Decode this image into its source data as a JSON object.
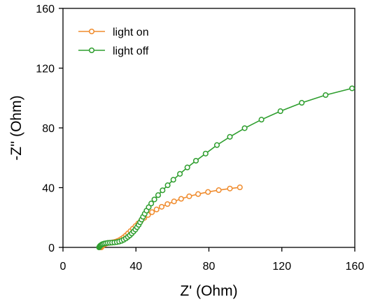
{
  "chart_data": {
    "type": "scatter",
    "xlabel": "Z' (Ohm)",
    "ylabel": "-Z'' (Ohm)",
    "xlim": [
      0,
      160
    ],
    "ylim": [
      0,
      160
    ],
    "xticks": [
      0,
      40,
      80,
      120,
      160
    ],
    "yticks": [
      0,
      40,
      80,
      120,
      160
    ],
    "grid": false,
    "legend_position": "top-left",
    "series": [
      {
        "name": "light on",
        "color": "#f08c2e",
        "marker": "open-circle",
        "points": [
          [
            21.0,
            0.0
          ],
          [
            21.3,
            0.5
          ],
          [
            21.6,
            1.0
          ],
          [
            22.0,
            1.4
          ],
          [
            22.5,
            1.9
          ],
          [
            23.1,
            2.3
          ],
          [
            23.8,
            2.6
          ],
          [
            24.6,
            2.9
          ],
          [
            25.5,
            3.1
          ],
          [
            26.5,
            3.2
          ],
          [
            27.5,
            3.4
          ],
          [
            28.6,
            3.7
          ],
          [
            29.7,
            4.2
          ],
          [
            30.9,
            4.8
          ],
          [
            32.1,
            5.7
          ],
          [
            33.3,
            6.8
          ],
          [
            34.5,
            8.0
          ],
          [
            35.7,
            9.4
          ],
          [
            37.0,
            10.9
          ],
          [
            38.3,
            12.5
          ],
          [
            39.7,
            14.2
          ],
          [
            41.2,
            16.0
          ],
          [
            42.8,
            17.9
          ],
          [
            44.6,
            19.8
          ],
          [
            46.6,
            21.7
          ],
          [
            48.8,
            23.6
          ],
          [
            51.3,
            25.4
          ],
          [
            54.1,
            27.2
          ],
          [
            57.3,
            29.0
          ],
          [
            60.9,
            30.8
          ],
          [
            64.8,
            32.5
          ],
          [
            69.2,
            34.2
          ],
          [
            74.1,
            35.7
          ],
          [
            79.5,
            37.1
          ],
          [
            85.4,
            38.3
          ],
          [
            91.5,
            39.4
          ],
          [
            97.0,
            40.2
          ]
        ]
      },
      {
        "name": "light off",
        "color": "#2e9e2e",
        "marker": "open-circle",
        "points": [
          [
            19.8,
            0.0
          ],
          [
            20.0,
            0.4
          ],
          [
            20.2,
            0.8
          ],
          [
            20.5,
            1.2
          ],
          [
            20.9,
            1.6
          ],
          [
            21.4,
            2.0
          ],
          [
            22.0,
            2.3
          ],
          [
            22.7,
            2.6
          ],
          [
            23.6,
            2.8
          ],
          [
            24.6,
            3.0
          ],
          [
            25.7,
            3.1
          ],
          [
            26.9,
            3.2
          ],
          [
            28.2,
            3.3
          ],
          [
            29.5,
            3.5
          ],
          [
            30.8,
            3.9
          ],
          [
            32.1,
            4.4
          ],
          [
            33.3,
            5.1
          ],
          [
            34.5,
            6.0
          ],
          [
            35.6,
            7.0
          ],
          [
            36.7,
            8.1
          ],
          [
            37.7,
            9.3
          ],
          [
            38.7,
            10.6
          ],
          [
            39.7,
            12.0
          ],
          [
            40.6,
            13.5
          ],
          [
            41.5,
            15.1
          ],
          [
            42.3,
            16.8
          ],
          [
            43.1,
            18.6
          ],
          [
            43.9,
            20.5
          ],
          [
            44.8,
            22.5
          ],
          [
            45.8,
            24.6
          ],
          [
            47.0,
            26.9
          ],
          [
            48.4,
            29.4
          ],
          [
            50.1,
            32.1
          ],
          [
            52.2,
            35.0
          ],
          [
            54.6,
            38.2
          ],
          [
            57.4,
            41.6
          ],
          [
            60.5,
            45.3
          ],
          [
            64.1,
            49.2
          ],
          [
            68.2,
            53.5
          ],
          [
            72.9,
            58.0
          ],
          [
            78.2,
            62.8
          ],
          [
            84.4,
            68.5
          ],
          [
            91.5,
            74.0
          ],
          [
            99.6,
            79.8
          ],
          [
            108.8,
            85.5
          ],
          [
            119.2,
            91.2
          ],
          [
            130.9,
            96.8
          ],
          [
            144.0,
            102.0
          ],
          [
            158.5,
            106.5
          ]
        ]
      }
    ]
  }
}
